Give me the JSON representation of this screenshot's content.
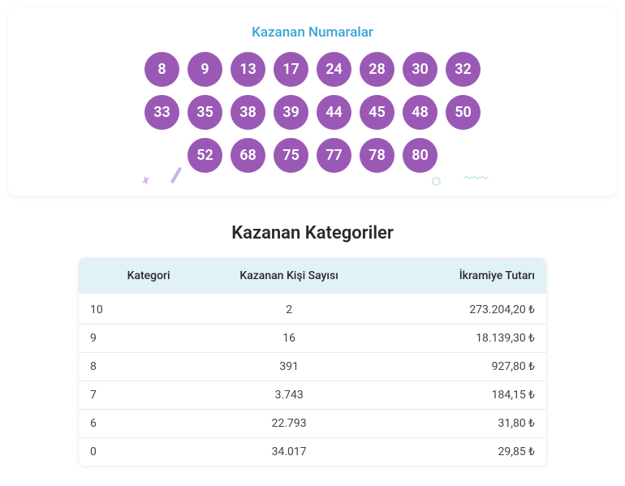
{
  "winning_numbers": {
    "title": "Kazanan Numaralar",
    "ball_color": "#9b59b6",
    "ball_text_color": "#ffffff",
    "title_color": "#3aa3d9",
    "rows": [
      [
        "8",
        "9",
        "13",
        "17",
        "24",
        "28",
        "30",
        "32"
      ],
      [
        "33",
        "35",
        "38",
        "39",
        "44",
        "45",
        "48",
        "50"
      ],
      [
        "52",
        "68",
        "75",
        "77",
        "78",
        "80"
      ]
    ]
  },
  "categories": {
    "title": "Kazanan Kategoriler",
    "header_bg": "#e1f2f7",
    "columns": {
      "category": "Kategori",
      "winners": "Kazanan Kişi Sayısı",
      "prize": "İkramiye Tutarı"
    },
    "rows": [
      {
        "category": "10",
        "winners": "2",
        "prize": "273.204,20 ₺"
      },
      {
        "category": "9",
        "winners": "16",
        "prize": "18.139,30 ₺"
      },
      {
        "category": "8",
        "winners": "391",
        "prize": "927,80 ₺"
      },
      {
        "category": "7",
        "winners": "3.743",
        "prize": "184,15 ₺"
      },
      {
        "category": "6",
        "winners": "22.793",
        "prize": "31,80 ₺"
      },
      {
        "category": "0",
        "winners": "34.017",
        "prize": "29,85 ₺"
      }
    ]
  }
}
